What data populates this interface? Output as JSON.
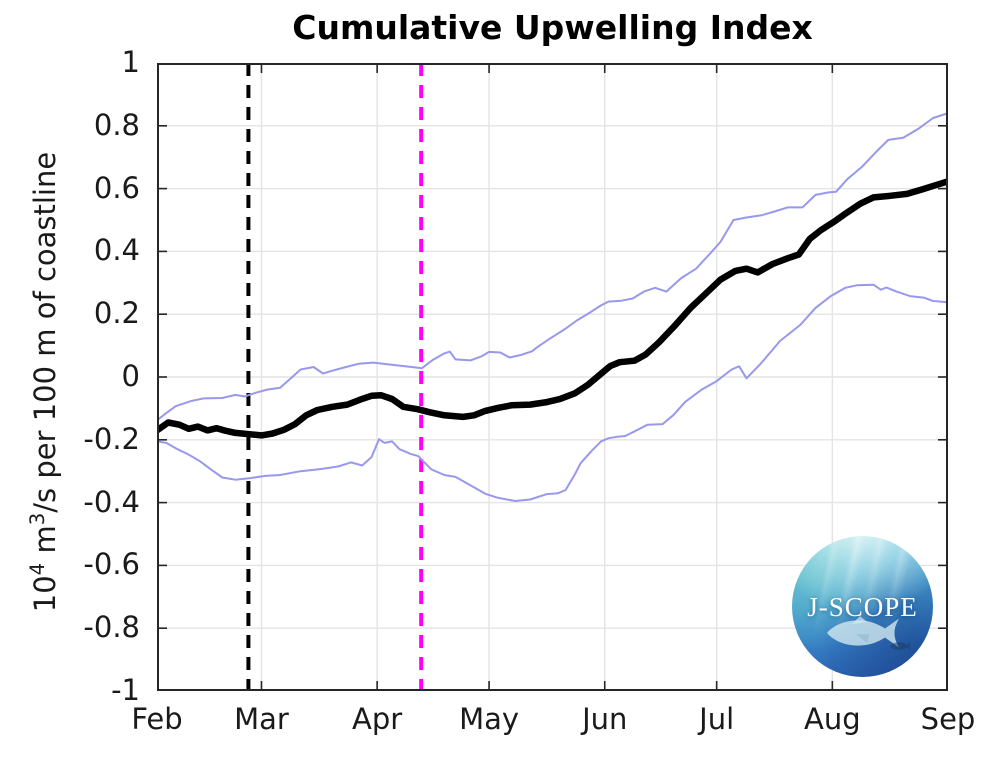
{
  "title": "Cumulative Upwelling Index",
  "y_axis": {
    "label_parts": {
      "base": "10",
      "exp1": "4",
      "unit_m": " m",
      "exp2": "3",
      "rest": "/s per 100 m of coastline"
    }
  },
  "logo": {
    "text": "J-SCOPE"
  },
  "colors": {
    "axis": "#262626",
    "tick_text": "#1a1a1a",
    "grid": "#e4e4e4",
    "main_line": "#000000",
    "envelope_line": "#9898ec",
    "vline_black": "#000000",
    "vline_magenta": "#ff00ff",
    "background": "#ffffff"
  },
  "chart_data": {
    "type": "line",
    "title": "Cumulative Upwelling Index",
    "ylabel": "10^4 m^3/s per 100 m of coastline",
    "xlabel": "",
    "x_unit": "days since Feb 1",
    "xlim": [
      0,
      212
    ],
    "ylim": [
      -1,
      1
    ],
    "grid": true,
    "legend": "none",
    "x_ticks": {
      "days": [
        0,
        28,
        59,
        89,
        120,
        150,
        181,
        212
      ],
      "labels": [
        "Feb",
        "Mar",
        "Apr",
        "May",
        "Jun",
        "Jul",
        "Aug",
        "Sep"
      ]
    },
    "y_ticks": {
      "values": [
        1,
        0.8,
        0.6,
        0.4,
        0.2,
        0,
        -0.2,
        -0.4,
        -0.6,
        -0.8,
        -1
      ],
      "labels": [
        "1",
        "0.8",
        "0.6",
        "0.4",
        "0.2",
        "0",
        "-0.2",
        "-0.4",
        "-0.6",
        "-0.8",
        "-1"
      ]
    },
    "vlines": [
      {
        "name": "black-dashed-vline",
        "day": 24.5,
        "color": "#000000",
        "style": "dashed",
        "width": 4
      },
      {
        "name": "magenta-dashed-vline",
        "day": 70.8,
        "color": "#ff00ff",
        "style": "dashed",
        "width": 4
      }
    ],
    "series": [
      {
        "name": "thin-blue-upper-envelope",
        "color": "#9898ec",
        "line_width": 2,
        "points": [
          [
            0,
            -0.138
          ],
          [
            2.5,
            -0.115
          ],
          [
            5,
            -0.093
          ],
          [
            9,
            -0.077
          ],
          [
            12.5,
            -0.068
          ],
          [
            17.5,
            -0.067
          ],
          [
            21,
            -0.057
          ],
          [
            23.5,
            -0.062
          ],
          [
            26.5,
            -0.05
          ],
          [
            29.5,
            -0.04
          ],
          [
            33,
            -0.034
          ],
          [
            35.5,
            -0.008
          ],
          [
            38.5,
            0.024
          ],
          [
            42,
            0.032
          ],
          [
            44.5,
            0.011
          ],
          [
            47,
            0.02
          ],
          [
            50,
            0.03
          ],
          [
            54,
            0.042
          ],
          [
            58,
            0.046
          ],
          [
            62,
            0.04
          ],
          [
            66.5,
            0.034
          ],
          [
            71,
            0.028
          ],
          [
            74,
            0.055
          ],
          [
            77,
            0.075
          ],
          [
            78.5,
            0.081
          ],
          [
            80,
            0.056
          ],
          [
            84,
            0.053
          ],
          [
            87,
            0.066
          ],
          [
            89,
            0.08
          ],
          [
            92,
            0.078
          ],
          [
            94.5,
            0.062
          ],
          [
            97.5,
            0.07
          ],
          [
            100.5,
            0.082
          ],
          [
            102,
            0.096
          ],
          [
            105,
            0.12
          ],
          [
            109,
            0.15
          ],
          [
            112.5,
            0.18
          ],
          [
            116,
            0.205
          ],
          [
            119,
            0.228
          ],
          [
            121,
            0.24
          ],
          [
            124.5,
            0.243
          ],
          [
            127.5,
            0.25
          ],
          [
            130.5,
            0.272
          ],
          [
            133.5,
            0.284
          ],
          [
            136.5,
            0.272
          ],
          [
            140.5,
            0.315
          ],
          [
            144.5,
            0.345
          ],
          [
            148,
            0.39
          ],
          [
            151,
            0.43
          ],
          [
            154.5,
            0.5
          ],
          [
            158,
            0.508
          ],
          [
            162,
            0.515
          ],
          [
            165.5,
            0.527
          ],
          [
            169,
            0.54
          ],
          [
            173,
            0.54
          ],
          [
            176.5,
            0.58
          ],
          [
            180,
            0.588
          ],
          [
            182,
            0.59
          ],
          [
            185,
            0.63
          ],
          [
            189,
            0.67
          ],
          [
            193,
            0.72
          ],
          [
            196,
            0.755
          ],
          [
            200,
            0.762
          ],
          [
            204,
            0.79
          ],
          [
            208,
            0.825
          ],
          [
            212,
            0.84
          ]
        ]
      },
      {
        "name": "thin-blue-lower-envelope",
        "color": "#9898ec",
        "line_width": 2,
        "points": [
          [
            0,
            -0.205
          ],
          [
            2.5,
            -0.21
          ],
          [
            5.5,
            -0.23
          ],
          [
            8.5,
            -0.247
          ],
          [
            11.5,
            -0.268
          ],
          [
            14.5,
            -0.295
          ],
          [
            17.5,
            -0.32
          ],
          [
            21,
            -0.327
          ],
          [
            25,
            -0.322
          ],
          [
            29,
            -0.315
          ],
          [
            33,
            -0.312
          ],
          [
            38.5,
            -0.3
          ],
          [
            44,
            -0.293
          ],
          [
            48.5,
            -0.285
          ],
          [
            52,
            -0.272
          ],
          [
            55,
            -0.282
          ],
          [
            57.5,
            -0.255
          ],
          [
            59.5,
            -0.198
          ],
          [
            61,
            -0.21
          ],
          [
            63,
            -0.205
          ],
          [
            65,
            -0.23
          ],
          [
            68,
            -0.245
          ],
          [
            70,
            -0.252
          ],
          [
            73.5,
            -0.294
          ],
          [
            77,
            -0.312
          ],
          [
            80,
            -0.318
          ],
          [
            84,
            -0.345
          ],
          [
            88,
            -0.372
          ],
          [
            91.5,
            -0.385
          ],
          [
            96,
            -0.395
          ],
          [
            100,
            -0.39
          ],
          [
            104.5,
            -0.373
          ],
          [
            107.5,
            -0.37
          ],
          [
            109.5,
            -0.36
          ],
          [
            112,
            -0.31
          ],
          [
            113.5,
            -0.275
          ],
          [
            116.5,
            -0.235
          ],
          [
            119,
            -0.205
          ],
          [
            121,
            -0.195
          ],
          [
            123.5,
            -0.19
          ],
          [
            125.5,
            -0.188
          ],
          [
            128.5,
            -0.17
          ],
          [
            131.5,
            -0.152
          ],
          [
            135.5,
            -0.15
          ],
          [
            138.5,
            -0.12
          ],
          [
            141.5,
            -0.08
          ],
          [
            146,
            -0.04
          ],
          [
            150,
            -0.013
          ],
          [
            154,
            0.024
          ],
          [
            156,
            0.034
          ],
          [
            158,
            -0.004
          ],
          [
            162,
            0.045
          ],
          [
            167,
            0.115
          ],
          [
            172.5,
            0.167
          ],
          [
            176.5,
            0.22
          ],
          [
            180.5,
            0.257
          ],
          [
            184.5,
            0.284
          ],
          [
            187.5,
            0.292
          ],
          [
            192,
            0.294
          ],
          [
            194,
            0.278
          ],
          [
            195.5,
            0.285
          ],
          [
            198,
            0.273
          ],
          [
            202,
            0.257
          ],
          [
            205.5,
            0.253
          ],
          [
            208,
            0.242
          ],
          [
            212,
            0.238
          ]
        ]
      },
      {
        "name": "bold-black-mean-line",
        "color": "#000000",
        "line_width": 6.5,
        "points": [
          [
            0,
            -0.17
          ],
          [
            3,
            -0.145
          ],
          [
            6,
            -0.152
          ],
          [
            8.5,
            -0.165
          ],
          [
            11,
            -0.158
          ],
          [
            13.5,
            -0.17
          ],
          [
            16,
            -0.163
          ],
          [
            18,
            -0.17
          ],
          [
            21,
            -0.178
          ],
          [
            24.5,
            -0.182
          ],
          [
            28,
            -0.186
          ],
          [
            31,
            -0.18
          ],
          [
            34,
            -0.168
          ],
          [
            37,
            -0.15
          ],
          [
            40,
            -0.122
          ],
          [
            43,
            -0.105
          ],
          [
            47,
            -0.095
          ],
          [
            51,
            -0.088
          ],
          [
            54.5,
            -0.072
          ],
          [
            57.5,
            -0.06
          ],
          [
            60,
            -0.058
          ],
          [
            63,
            -0.07
          ],
          [
            66,
            -0.095
          ],
          [
            70,
            -0.103
          ],
          [
            73,
            -0.112
          ],
          [
            77,
            -0.122
          ],
          [
            82,
            -0.127
          ],
          [
            85,
            -0.122
          ],
          [
            88,
            -0.108
          ],
          [
            91.5,
            -0.098
          ],
          [
            95,
            -0.09
          ],
          [
            100,
            -0.088
          ],
          [
            104.5,
            -0.08
          ],
          [
            108,
            -0.07
          ],
          [
            112,
            -0.052
          ],
          [
            115.5,
            -0.025
          ],
          [
            118.5,
            0.005
          ],
          [
            121.5,
            0.035
          ],
          [
            124,
            0.047
          ],
          [
            128,
            0.052
          ],
          [
            131,
            0.072
          ],
          [
            134.5,
            0.11
          ],
          [
            138.5,
            0.16
          ],
          [
            143,
            0.22
          ],
          [
            147,
            0.265
          ],
          [
            151,
            0.31
          ],
          [
            155,
            0.338
          ],
          [
            158,
            0.345
          ],
          [
            161,
            0.333
          ],
          [
            165,
            0.36
          ],
          [
            169,
            0.378
          ],
          [
            172,
            0.39
          ],
          [
            175,
            0.44
          ],
          [
            178,
            0.468
          ],
          [
            181.5,
            0.495
          ],
          [
            184.5,
            0.52
          ],
          [
            188.5,
            0.552
          ],
          [
            192,
            0.572
          ],
          [
            196.5,
            0.577
          ],
          [
            201,
            0.583
          ],
          [
            205,
            0.597
          ],
          [
            209,
            0.612
          ],
          [
            212,
            0.623
          ]
        ]
      }
    ]
  }
}
